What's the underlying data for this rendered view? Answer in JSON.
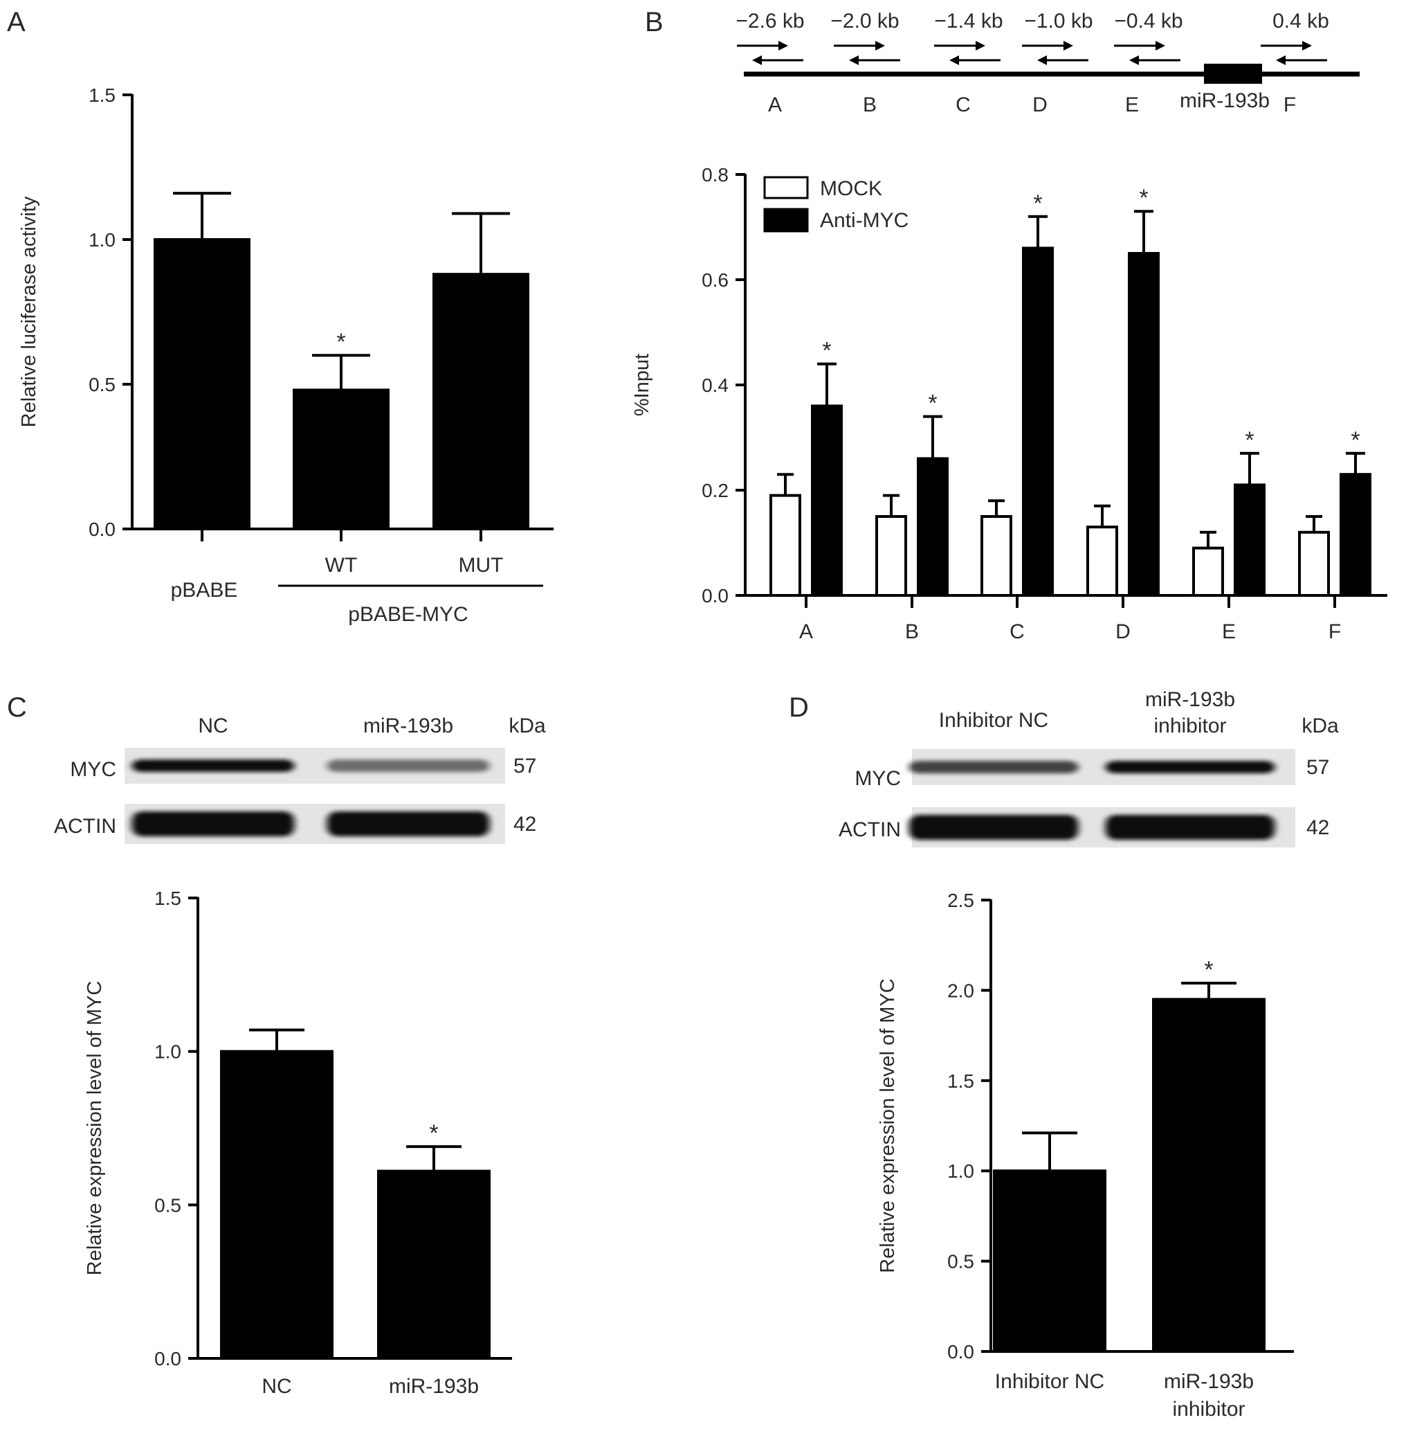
{
  "colors": {
    "bar_fill": "#000000",
    "mock_fill": "#ffffff",
    "axis": "#000000",
    "text": "#2a2a2a"
  },
  "panels": {
    "A": {
      "letter": "A"
    },
    "B": {
      "letter": "B"
    },
    "C": {
      "letter": "C"
    },
    "D": {
      "letter": "D"
    }
  },
  "panel_b_map": {
    "positions": [
      "−2.6 kb",
      "−2.0 kb",
      "−1.4 kb",
      "−1.0 kb",
      "−0.4 kb",
      "0.4 kb"
    ],
    "regions": [
      "A",
      "B",
      "C",
      "D",
      "E",
      "F"
    ],
    "gene_label": "miR-193b"
  },
  "blot_c": {
    "lanes": [
      "NC",
      "miR-193b"
    ],
    "kda_header": "kDa",
    "rows": [
      {
        "protein": "MYC",
        "kda": "57"
      },
      {
        "protein": "ACTIN",
        "kda": "42"
      }
    ],
    "myc_band_intensity": [
      1.0,
      0.55
    ]
  },
  "blot_d": {
    "lanes": [
      "Inhibitor NC",
      "miR-193b inhibitor"
    ],
    "lane_lines": [
      [
        "Inhibitor NC"
      ],
      [
        "miR-193b",
        "inhibitor"
      ]
    ],
    "kda_header": "kDa",
    "rows": [
      {
        "protein": "MYC",
        "kda": "57"
      },
      {
        "protein": "ACTIN",
        "kda": "42"
      }
    ],
    "myc_band_intensity": [
      0.75,
      1.0
    ]
  },
  "chart_data": [
    {
      "panel": "A",
      "type": "bar",
      "categories": [
        "pBABE",
        "WT",
        "MUT"
      ],
      "group_label": "pBABE-MYC",
      "values": [
        1.0,
        0.48,
        0.88
      ],
      "errors": [
        0.16,
        0.12,
        0.21
      ],
      "significant": [
        false,
        true,
        false
      ],
      "ylabel": "Relative luciferase activity",
      "ylim": [
        0,
        1.5
      ],
      "yticks": [
        "0.0",
        "0.5",
        "1.0",
        "1.5"
      ],
      "grid": false
    },
    {
      "panel": "B",
      "type": "bar",
      "categories": [
        "A",
        "B",
        "C",
        "D",
        "E",
        "F"
      ],
      "series": [
        {
          "name": "MOCK",
          "values": [
            0.19,
            0.15,
            0.15,
            0.13,
            0.09,
            0.12
          ],
          "errors": [
            0.04,
            0.04,
            0.03,
            0.04,
            0.03,
            0.03
          ],
          "significant": [
            false,
            false,
            false,
            false,
            false,
            false
          ]
        },
        {
          "name": "Anti-MYC",
          "values": [
            0.36,
            0.26,
            0.66,
            0.65,
            0.21,
            0.23
          ],
          "errors": [
            0.08,
            0.08,
            0.06,
            0.08,
            0.06,
            0.04
          ],
          "significant": [
            true,
            true,
            true,
            true,
            true,
            true
          ]
        }
      ],
      "ylabel": "%Input",
      "ylim": [
        0,
        0.8
      ],
      "yticks": [
        "0.0",
        "0.2",
        "0.4",
        "0.6",
        "0.8"
      ],
      "legend": "top-left",
      "grid": false
    },
    {
      "panel": "C",
      "type": "bar",
      "categories": [
        "NC",
        "miR-193b"
      ],
      "values": [
        1.0,
        0.61
      ],
      "errors": [
        0.07,
        0.08
      ],
      "significant": [
        false,
        true
      ],
      "ylabel": "Relative expression level of MYC",
      "ylim": [
        0,
        1.5
      ],
      "yticks": [
        "0.0",
        "0.5",
        "1.0",
        "1.5"
      ],
      "grid": false
    },
    {
      "panel": "D",
      "type": "bar",
      "categories": [
        "Inhibitor NC",
        "miR-193b inhibitor"
      ],
      "category_lines": [
        [
          "Inhibitor NC"
        ],
        [
          "miR-193b",
          "inhibitor"
        ]
      ],
      "values": [
        1.0,
        1.95
      ],
      "errors": [
        0.21,
        0.09
      ],
      "significant": [
        false,
        true
      ],
      "ylabel": "Relative expression level of MYC",
      "ylim": [
        0,
        2.5
      ],
      "yticks": [
        "0.0",
        "0.5",
        "1.0",
        "1.5",
        "2.0",
        "2.5"
      ],
      "grid": false
    }
  ]
}
